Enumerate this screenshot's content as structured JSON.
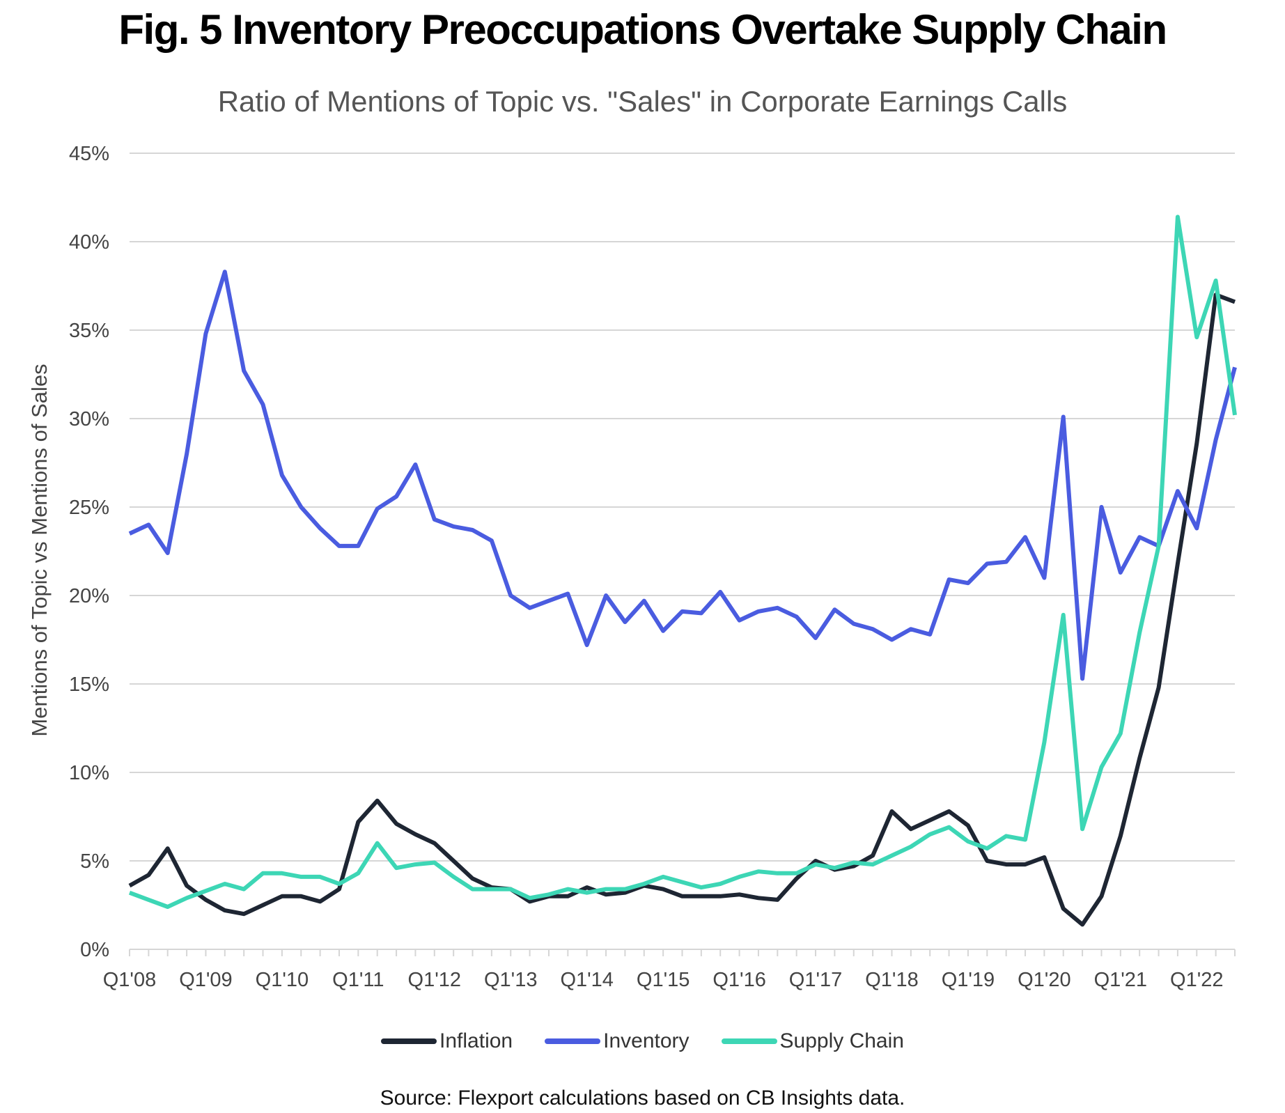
{
  "title": "Fig. 5 Inventory Preoccupations Overtake Supply Chain",
  "subtitle": "Ratio of  Mentions of Topic vs. \"Sales\" in Corporate Earnings Calls",
  "source": "Source: Flexport calculations based on CB Insights data.",
  "chart_data": {
    "type": "line",
    "title": "Fig. 5 Inventory Preoccupations Overtake Supply Chain",
    "subtitle": "Ratio of  Mentions of Topic vs. \"Sales\" in Corporate Earnings Calls",
    "xlabel": "",
    "ylabel": "Mentions of Topic vs Mentions of Sales",
    "ylim": [
      0,
      45
    ],
    "yticks": [
      0,
      5,
      10,
      15,
      20,
      25,
      30,
      35,
      40,
      45
    ],
    "ytick_labels": [
      "0%",
      "5%",
      "10%",
      "15%",
      "20%",
      "25%",
      "30%",
      "35%",
      "40%",
      "45%"
    ],
    "grid": true,
    "legend_position": "bottom",
    "x": [
      "Q1'08",
      "Q2'08",
      "Q3'08",
      "Q4'08",
      "Q1'09",
      "Q2'09",
      "Q3'09",
      "Q4'09",
      "Q1'10",
      "Q2'10",
      "Q3'10",
      "Q4'10",
      "Q1'11",
      "Q2'11",
      "Q3'11",
      "Q4'11",
      "Q1'12",
      "Q2'12",
      "Q3'12",
      "Q4'12",
      "Q1'13",
      "Q2'13",
      "Q3'13",
      "Q4'13",
      "Q1'14",
      "Q2'14",
      "Q3'14",
      "Q4'14",
      "Q1'15",
      "Q2'15",
      "Q3'15",
      "Q4'15",
      "Q1'16",
      "Q2'16",
      "Q3'16",
      "Q4'16",
      "Q1'17",
      "Q2'17",
      "Q3'17",
      "Q4'17",
      "Q1'18",
      "Q2'18",
      "Q3'18",
      "Q4'18",
      "Q1'19",
      "Q2'19",
      "Q3'19",
      "Q4'19",
      "Q1'20",
      "Q2'20",
      "Q3'20",
      "Q4'20",
      "Q1'21",
      "Q2'21",
      "Q3'21",
      "Q4'21",
      "Q1'22",
      "Q2'22",
      "Q3'22"
    ],
    "xtick_labels": [
      "Q1'08",
      "Q1'09",
      "Q1'10",
      "Q1'11",
      "Q1'12",
      "Q1'13",
      "Q1'14",
      "Q1'15",
      "Q1'16",
      "Q1'17",
      "Q1'18",
      "Q1'19",
      "Q1'20",
      "Q1'21",
      "Q1'22"
    ],
    "series": [
      {
        "name": "Inflation",
        "color": "#1e2633",
        "values": [
          3.6,
          4.2,
          5.7,
          3.6,
          2.8,
          2.2,
          2.0,
          2.5,
          3.0,
          3.0,
          2.7,
          3.4,
          7.2,
          8.4,
          7.1,
          6.5,
          6.0,
          5.0,
          4.0,
          3.5,
          3.4,
          2.7,
          3.0,
          3.0,
          3.5,
          3.1,
          3.2,
          3.6,
          3.4,
          3.0,
          3.0,
          3.0,
          3.1,
          2.9,
          2.8,
          4.0,
          5.0,
          4.5,
          4.7,
          5.3,
          7.8,
          6.8,
          7.3,
          7.8,
          7.0,
          5.0,
          4.8,
          4.8,
          5.2,
          2.3,
          1.4,
          3.0,
          6.4,
          10.8,
          14.8,
          21.8,
          28.6,
          37.0,
          36.6
        ]
      },
      {
        "name": "Inventory",
        "color": "#4a5ce0",
        "values": [
          23.5,
          24.0,
          22.4,
          28.0,
          34.8,
          38.3,
          32.7,
          30.8,
          26.8,
          25.0,
          23.8,
          22.8,
          22.8,
          24.9,
          25.6,
          27.4,
          24.3,
          23.9,
          23.7,
          23.1,
          20.0,
          19.3,
          19.7,
          20.1,
          17.2,
          20.0,
          18.5,
          19.7,
          18.0,
          19.1,
          19.0,
          20.2,
          18.6,
          19.1,
          19.3,
          18.8,
          17.6,
          19.2,
          18.4,
          18.1,
          17.5,
          18.1,
          17.8,
          20.9,
          20.7,
          21.8,
          21.9,
          23.3,
          21.0,
          30.1,
          15.3,
          25.0,
          21.3,
          23.3,
          22.8,
          25.9,
          23.8,
          28.8,
          32.9
        ]
      },
      {
        "name": "Supply Chain",
        "color": "#3dd6b5",
        "values": [
          3.2,
          2.8,
          2.4,
          2.9,
          3.3,
          3.7,
          3.4,
          4.3,
          4.3,
          4.1,
          4.1,
          3.7,
          4.3,
          6.0,
          4.6,
          4.8,
          4.9,
          4.1,
          3.4,
          3.4,
          3.4,
          2.9,
          3.1,
          3.4,
          3.2,
          3.4,
          3.4,
          3.7,
          4.1,
          3.8,
          3.5,
          3.7,
          4.1,
          4.4,
          4.3,
          4.3,
          4.8,
          4.6,
          4.9,
          4.8,
          5.3,
          5.8,
          6.5,
          6.9,
          6.1,
          5.7,
          6.4,
          6.2,
          11.7,
          18.9,
          6.8,
          10.3,
          12.2,
          17.9,
          22.8,
          41.4,
          34.6,
          37.8,
          30.2
        ]
      }
    ]
  }
}
